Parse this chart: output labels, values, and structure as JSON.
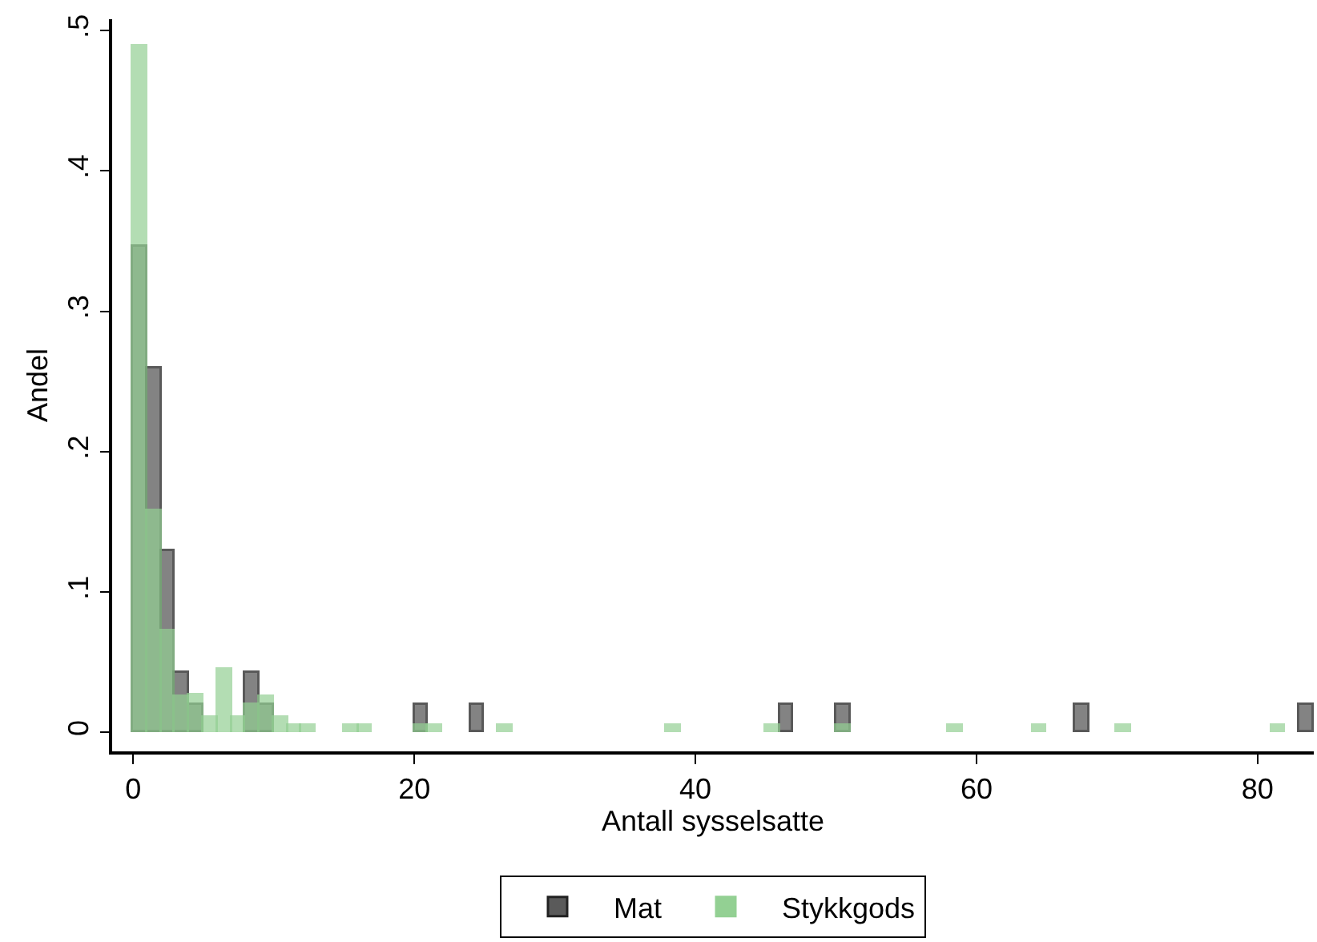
{
  "chart_data": {
    "type": "histogram",
    "xlabel": "Antall sysselsatte",
    "ylabel": "Andel",
    "bins": [
      0,
      1,
      2,
      3,
      4,
      5,
      6,
      7,
      8,
      9,
      10,
      11,
      12,
      13,
      14,
      15,
      16,
      17,
      18,
      19,
      20,
      21,
      22,
      23,
      24,
      25,
      26,
      27,
      28,
      29,
      30,
      31,
      32,
      33,
      34,
      35,
      36,
      37,
      38,
      39,
      40,
      41,
      42,
      43,
      44,
      45,
      46,
      47,
      48,
      49,
      50,
      51,
      52,
      53,
      54,
      55,
      56,
      57,
      58,
      59,
      60,
      61,
      62,
      63,
      64,
      65,
      66,
      67,
      68,
      69,
      70,
      71,
      72,
      73,
      74,
      75,
      76,
      77,
      78,
      79,
      80,
      81,
      82,
      83,
      84
    ],
    "series": [
      {
        "name": "Mat",
        "color": "#5a5a5a",
        "values": [
          0.346,
          0.259,
          0.129,
          0.042,
          0.02,
          0,
          0,
          0,
          0.042,
          0.02,
          0,
          0,
          0,
          0,
          0,
          0,
          0,
          0,
          0,
          0,
          0.02,
          0,
          0,
          0,
          0.02,
          0,
          0,
          0,
          0,
          0,
          0,
          0,
          0,
          0,
          0,
          0,
          0,
          0,
          0,
          0,
          0,
          0,
          0,
          0,
          0,
          0,
          0.02,
          0,
          0,
          0,
          0.02,
          0,
          0,
          0,
          0,
          0,
          0,
          0,
          0,
          0,
          0,
          0,
          0,
          0,
          0,
          0,
          0,
          0.02,
          0,
          0,
          0,
          0,
          0,
          0,
          0,
          0,
          0,
          0,
          0,
          0,
          0,
          0,
          0,
          0.02
        ]
      },
      {
        "name": "Stykkgods",
        "color": "#93d093",
        "values": [
          0.489,
          0.158,
          0.072,
          0.025,
          0.026,
          0.011,
          0.045,
          0.011,
          0.02,
          0.025,
          0.011,
          0.005,
          0.005,
          0,
          0,
          0.005,
          0.005,
          0,
          0,
          0,
          0.005,
          0.005,
          0,
          0,
          0,
          0,
          0.005,
          0,
          0,
          0,
          0,
          0,
          0,
          0,
          0,
          0,
          0,
          0,
          0.005,
          0,
          0,
          0,
          0,
          0,
          0,
          0.005,
          0,
          0,
          0,
          0,
          0.005,
          0,
          0,
          0,
          0,
          0,
          0,
          0,
          0.005,
          0,
          0,
          0,
          0,
          0,
          0.005,
          0,
          0,
          0,
          0,
          0,
          0.005,
          0,
          0,
          0,
          0,
          0,
          0,
          0,
          0,
          0,
          0,
          0.005,
          0,
          0
        ]
      }
    ],
    "xlim": [
      -1.5,
      84
    ],
    "xticks": [
      0,
      20,
      40,
      60,
      80
    ],
    "ylim": [
      -0.0135,
      0.508
    ],
    "yticks": [
      0,
      {
        "value": 0.1,
        "label": ".1"
      },
      {
        "value": 0.2,
        "label": ".2"
      },
      {
        "value": 0.3,
        "label": ".3"
      },
      {
        "value": 0.4,
        "label": ".4"
      },
      {
        "value": 0.5,
        "label": ".5"
      }
    ],
    "grid": false,
    "legend": "bottom"
  }
}
